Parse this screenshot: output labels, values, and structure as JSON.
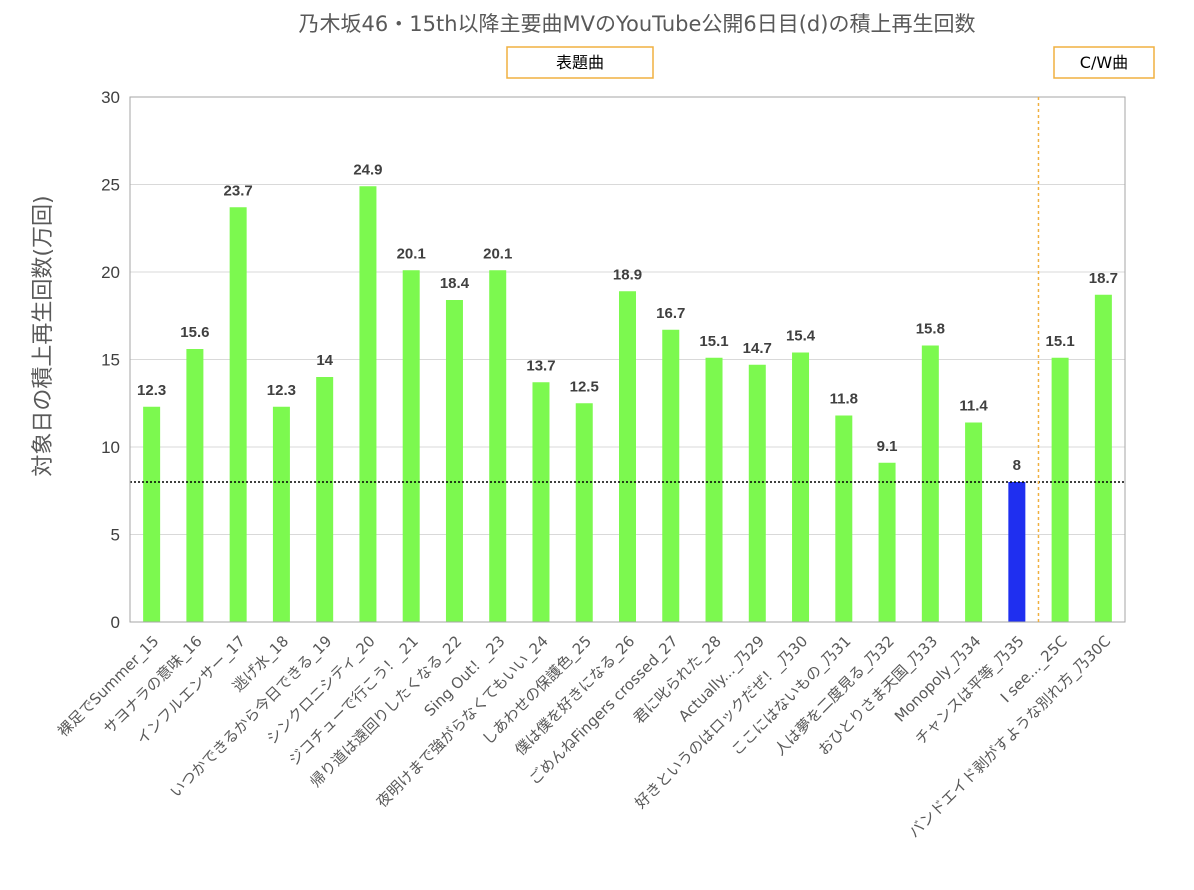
{
  "chart_data": {
    "type": "bar",
    "title": "乃木坂46・15th以降主要曲MVのYouTube公開6日目(d)の積上再生回数",
    "ylabel": "対象日の積上再生回数(万回)",
    "xlabel": "",
    "ylim": [
      0,
      30
    ],
    "yticks": [
      0,
      5,
      10,
      15,
      20,
      25,
      30
    ],
    "grid": true,
    "reference_line": 8,
    "categories": [
      "裸足でSummer_15",
      "サヨナラの意味_16",
      "インフルエンサー_17",
      "逃げ水_18",
      "いつかできるから今日できる_19",
      "シンクロニシティ_20",
      "ジコチューで行こう！_21",
      "帰り道は遠回りしたくなる_22",
      "Sing Out！_23",
      "夜明けまで強がらなくてもいい_24",
      "しあわせの保護色_25",
      "僕は僕を好きになる_26",
      "ごめんねFingers crossed_27",
      "君に叱られた_28",
      "Actually..._乃29",
      "好きというのはロックだぜ！_乃30",
      "ここにはないもの_乃31",
      "人は夢を二度見る_乃32",
      "おひとりさま天国_乃33",
      "Monopoly_乃34",
      "チャンスは平等_乃35",
      "I see..._25C",
      "バンドエイド剥がすような別れ方_乃30C"
    ],
    "values": [
      12.3,
      15.6,
      23.7,
      12.3,
      14,
      24.9,
      20.1,
      18.4,
      20.1,
      13.7,
      12.5,
      18.9,
      16.7,
      15.1,
      14.7,
      15.4,
      11.8,
      9.1,
      15.8,
      11.4,
      8,
      15.1,
      18.7
    ],
    "data_labels": [
      "12.3",
      "15.6",
      "23.7",
      "12.3",
      "14",
      "24.9",
      "20.1",
      "18.4",
      "20.1",
      "13.7",
      "12.5",
      "18.9",
      "16.7",
      "15.1",
      "14.7",
      "15.4",
      "11.8",
      "9.1",
      "15.8",
      "11.4",
      "8",
      "15.1",
      "18.7"
    ],
    "highlight_index": 20,
    "groups": [
      {
        "label": "表題曲",
        "start": 0,
        "end": 20
      },
      {
        "label": "C/W曲",
        "start": 21,
        "end": 22
      }
    ],
    "colors": {
      "bar": "#7cf94f",
      "highlight": "#1f2ff0",
      "grid": "#d9d9d9",
      "reference": "#000000",
      "divider": "#f0b040",
      "box_border": "#f0b040"
    }
  }
}
